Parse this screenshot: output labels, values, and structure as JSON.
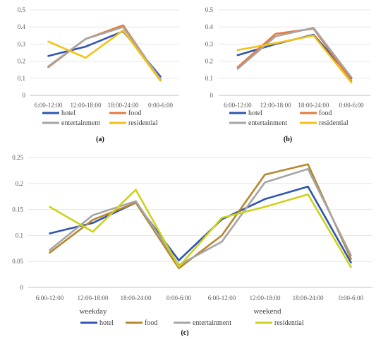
{
  "colors": {
    "hotel": "#2f55b0",
    "food": "#e8793a",
    "food_c": "#b8862d",
    "entertainment": "#a5a5a5",
    "residential": "#f2c218",
    "residential_c": "#cdd21a",
    "grid": "#e6e6e6",
    "axis": "#bfbfbf"
  },
  "chart_data": [
    {
      "id": "a",
      "type": "line",
      "caption": "(a)",
      "categories": [
        "6:00-12:00",
        "12:00-18:00",
        "18:00-24:00",
        "0:00-6:00"
      ],
      "ylim": [
        0,
        0.5
      ],
      "yticks": [
        "0",
        "0.1",
        "0.2",
        "0.3",
        "0.4",
        "0.5"
      ],
      "grid": true,
      "legend": [
        "hotel",
        "food",
        "entertainment",
        "residential"
      ],
      "series": [
        {
          "name": "hotel",
          "values": [
            0.23,
            0.285,
            0.375,
            0.11
          ]
        },
        {
          "name": "food",
          "values": [
            0.165,
            0.33,
            0.41,
            0.09
          ]
        },
        {
          "name": "entertainment",
          "values": [
            0.17,
            0.33,
            0.4,
            0.095
          ]
        },
        {
          "name": "residential",
          "values": [
            0.315,
            0.22,
            0.38,
            0.085
          ]
        }
      ]
    },
    {
      "id": "b",
      "type": "line",
      "caption": "(b)",
      "categories": [
        "6:00-12:00",
        "12:00-18:00",
        "18:00-24:00",
        "0:00-6:00"
      ],
      "ylim": [
        0,
        0.5
      ],
      "yticks": [
        "0",
        "0.1",
        "0.2",
        "0.3",
        "0.4",
        "0.5"
      ],
      "grid": true,
      "legend": [
        "hotel",
        "food",
        "entertainment",
        "residential"
      ],
      "series": [
        {
          "name": "hotel",
          "values": [
            0.235,
            0.3,
            0.355,
            0.1
          ]
        },
        {
          "name": "food",
          "values": [
            0.165,
            0.36,
            0.39,
            0.085
          ]
        },
        {
          "name": "entertainment",
          "values": [
            0.155,
            0.345,
            0.395,
            0.105
          ]
        },
        {
          "name": "residential",
          "values": [
            0.265,
            0.305,
            0.35,
            0.075
          ]
        }
      ]
    },
    {
      "id": "c",
      "type": "line",
      "caption": "(c)",
      "categories": [
        "6:00-12:00",
        "12:00-18:00",
        "18:00-24:00",
        "0:00-6:00",
        "6:00-12:00",
        "12:00-18:00",
        "18:00-24:00",
        "0:00-6:00"
      ],
      "groups": [
        "weekday",
        "weekend"
      ],
      "ylim": [
        0,
        0.25
      ],
      "yticks": [
        "0",
        "0.05",
        "0.1",
        "0.15",
        "0.2",
        "0.25"
      ],
      "grid": true,
      "legend": [
        "hotel",
        "food",
        "entertainment",
        "residential"
      ],
      "series": [
        {
          "name": "hotel",
          "values": [
            0.104,
            0.124,
            0.163,
            0.052,
            0.131,
            0.17,
            0.194,
            0.048
          ]
        },
        {
          "name": "food",
          "values": [
            0.067,
            0.13,
            0.163,
            0.037,
            0.1,
            0.217,
            0.237,
            0.055
          ]
        },
        {
          "name": "entertainment",
          "values": [
            0.072,
            0.139,
            0.166,
            0.043,
            0.088,
            0.202,
            0.228,
            0.062
          ]
        },
        {
          "name": "residential",
          "values": [
            0.155,
            0.107,
            0.188,
            0.04,
            0.134,
            0.155,
            0.179,
            0.039
          ]
        }
      ]
    }
  ]
}
